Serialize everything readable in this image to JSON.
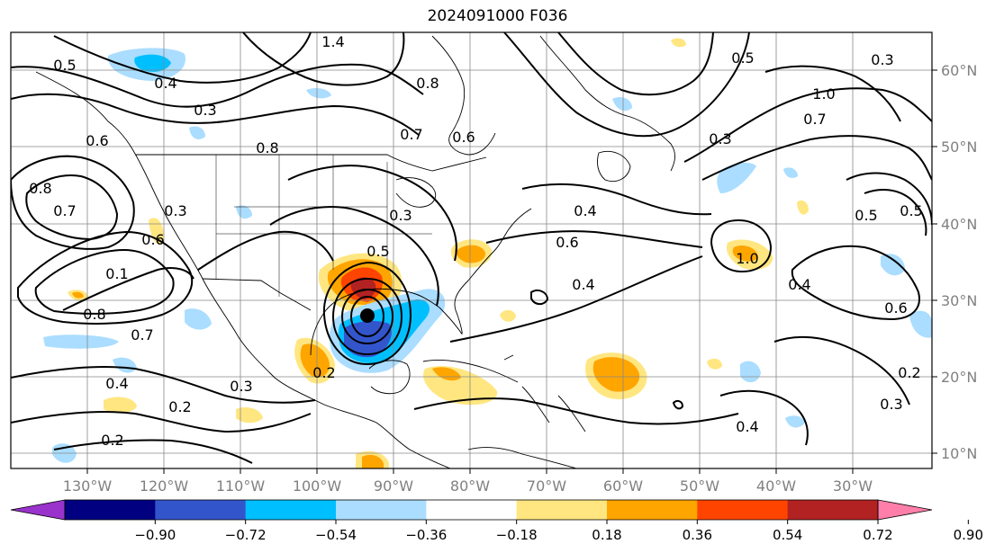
{
  "title": "2024091000 F036",
  "map": {
    "lon_ticks": [
      "130°W",
      "120°W",
      "110°W",
      "100°W",
      "90°W",
      "80°W",
      "70°W",
      "60°W",
      "50°W",
      "40°W",
      "30°W"
    ],
    "lat_ticks": [
      "60°N",
      "50°N",
      "40°N",
      "30°N",
      "20°N",
      "10°N"
    ],
    "contour_labels": [
      "1.4",
      "0.5",
      "0.4",
      "0.3",
      "0.8",
      "0.6",
      "0.7",
      "0.8",
      "0.6",
      "0.5",
      "1.0",
      "0.7",
      "0.6",
      "0.4",
      "0.8",
      "0.7",
      "0.3",
      "0.6",
      "0.1",
      "0.8",
      "1.0",
      "0.5",
      "0.3",
      "0.2",
      "0.7",
      "0.4",
      "0.2",
      "0.3",
      "0.2",
      "0.4",
      "0.5",
      "0.4",
      "0.3",
      "0.6",
      "0.5",
      "0.3",
      "0.4",
      "0.3",
      "0.2"
    ]
  },
  "colorbar": {
    "ticks": [
      "−0.90",
      "−0.72",
      "−0.54",
      "−0.36",
      "−0.18",
      "0.18",
      "0.36",
      "0.54",
      "0.72",
      "0.90"
    ],
    "colors": [
      "#9933cc",
      "#000080",
      "#3355cc",
      "#00bfff",
      "#aaddff",
      "#ffffff",
      "#ffe680",
      "#ffa500",
      "#ff4400",
      "#b22222",
      "#ff7faa"
    ],
    "under_color": "#9933cc",
    "over_color": "#ff7faa"
  }
}
